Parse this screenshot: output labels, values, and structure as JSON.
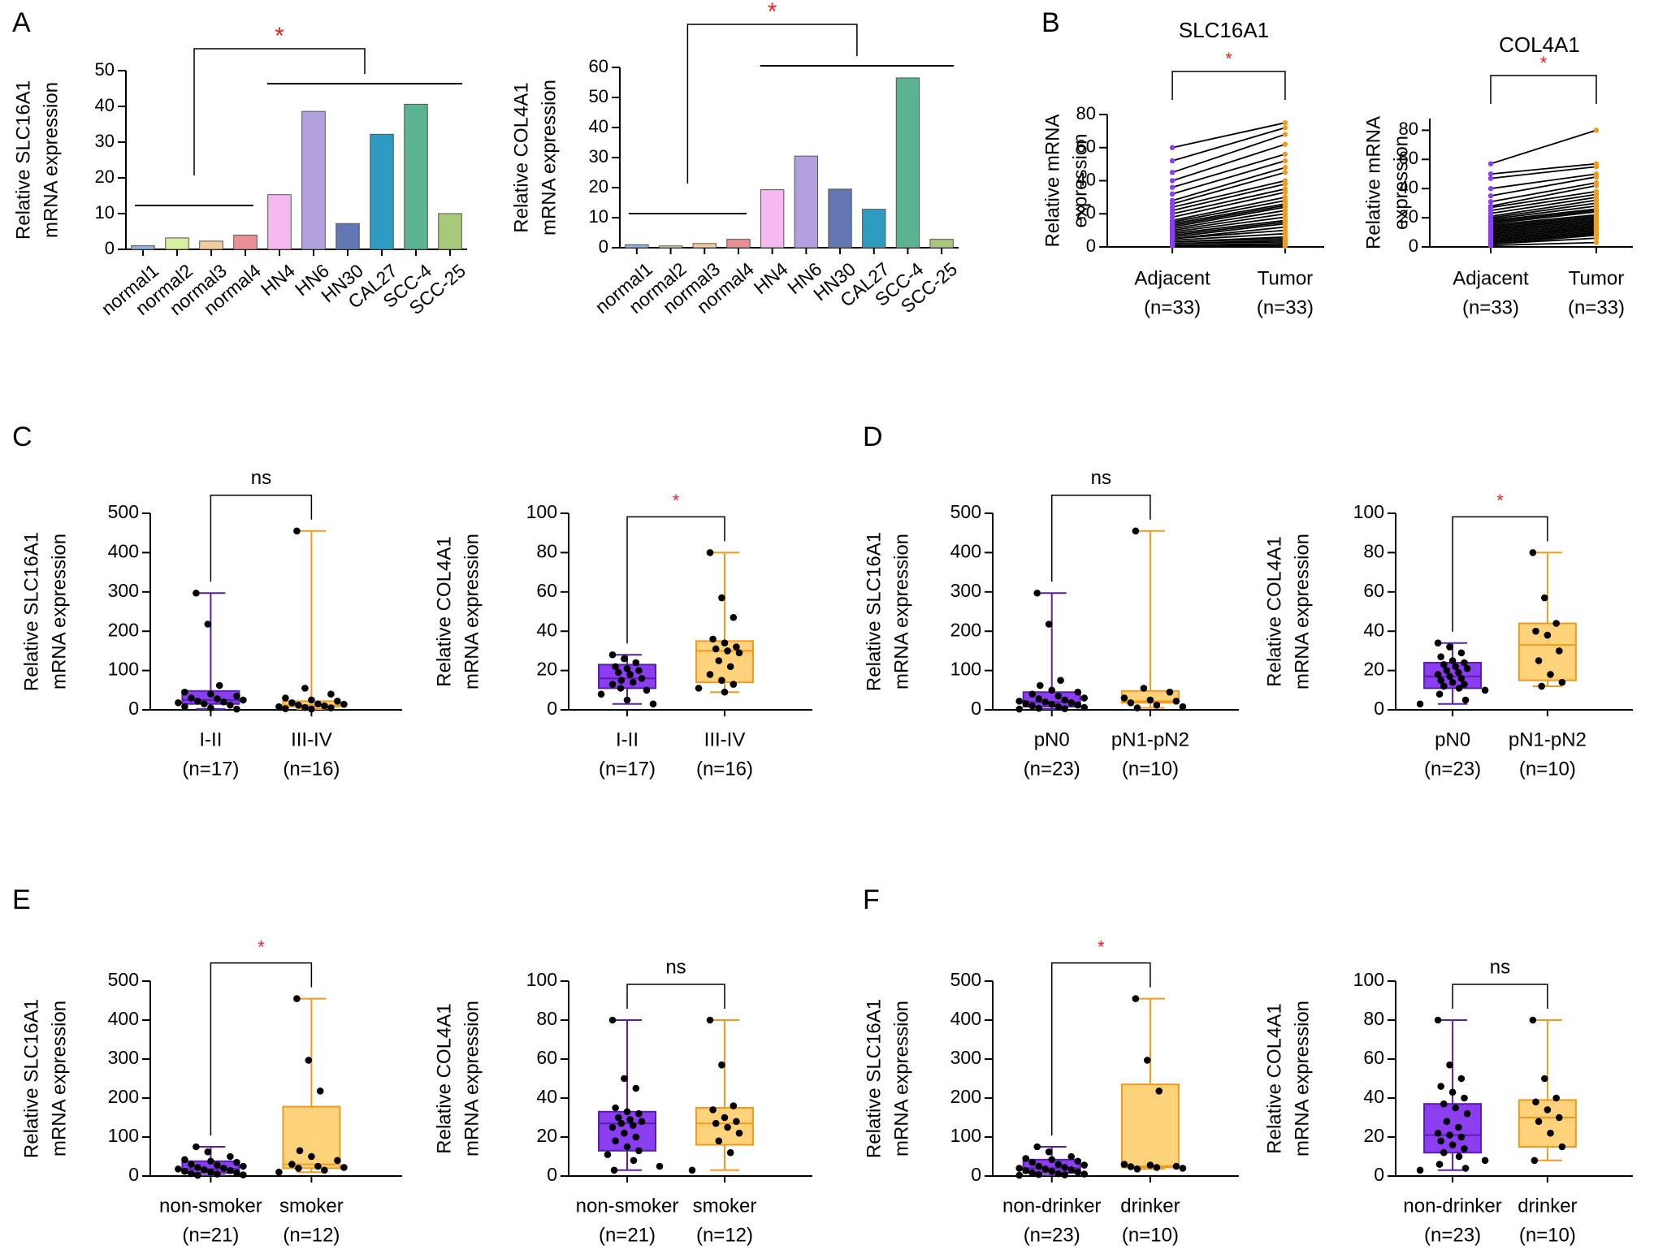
{
  "colors": {
    "purple_fill": "#8B3DF0",
    "purple_line": "#5A1FA8",
    "orange_fill": "#FDD27A",
    "orange_line": "#F29A1E",
    "sig_red": "#E8231F",
    "axis": "#000000",
    "bars": [
      "#8FB4E8",
      "#D5EEA0",
      "#F2CC9A",
      "#EA8F93",
      "#F6B8F0",
      "#B3A0DE",
      "#6277B4",
      "#2E9CC0",
      "#5BB48F",
      "#A9C97A"
    ]
  },
  "chart_data": [
    {
      "panel": "A",
      "panel_label": "A",
      "type": "bar",
      "ylabel": [
        "Relative SLC16A1",
        "mRNA expression"
      ],
      "categories": [
        "normal1",
        "normal2",
        "normal3",
        "normal4",
        "HN4",
        "HN6",
        "HN30",
        "CAL27",
        "SCC-4",
        "SCC-25"
      ],
      "values": [
        1,
        3.2,
        2.3,
        4,
        15.3,
        38.6,
        7.2,
        32.2,
        40.6,
        10
      ],
      "ylim": [
        0,
        50
      ],
      "yticks": [
        0,
        10,
        20,
        30,
        40,
        50
      ],
      "sig": "*"
    },
    {
      "panel": "A2",
      "panel_label": "",
      "type": "bar",
      "ylabel": [
        "Relative COL4A1",
        "mRNA expression"
      ],
      "categories": [
        "normal1",
        "normal2",
        "normal3",
        "normal4",
        "HN4",
        "HN6",
        "HN30",
        "CAL27",
        "SCC-4",
        "SCC-25"
      ],
      "values": [
        1,
        0.6,
        1.4,
        2.8,
        19.3,
        30.5,
        19.5,
        12.8,
        56.5,
        2.8
      ],
      "ylim": [
        0,
        60
      ],
      "yticks": [
        0,
        10,
        20,
        30,
        40,
        50,
        60
      ],
      "sig": "*"
    },
    {
      "panel": "B",
      "panel_label": "B",
      "type": "paired-line",
      "title": "SLC16A1",
      "ylabel": [
        "Relative mRNA",
        "expression"
      ],
      "groups": [
        "Adjacent",
        "Tumor"
      ],
      "ns": [
        "(n=33)",
        "(n=33)"
      ],
      "ylim": [
        0,
        80
      ],
      "yticks": [
        0,
        20,
        40,
        60,
        80
      ],
      "adjacent": [
        60,
        52,
        45,
        40,
        36,
        32,
        28,
        26,
        24,
        22,
        20,
        18,
        16,
        15,
        14,
        13,
        12,
        11,
        10,
        9,
        8,
        7,
        6,
        5,
        5,
        4,
        3,
        3,
        2,
        2,
        1,
        1,
        0.5
      ],
      "tumor": [
        75,
        72,
        68,
        62,
        56,
        52,
        48,
        45,
        40,
        38,
        35,
        33,
        30,
        28,
        26,
        25,
        24,
        22,
        20,
        18,
        16,
        15,
        14,
        12,
        10,
        8,
        6,
        5,
        4,
        3,
        2,
        1,
        0.5
      ],
      "sig": "*"
    },
    {
      "panel": "B2",
      "panel_label": "",
      "type": "paired-line",
      "title": "COL4A1",
      "ylabel": [
        "Relative mRNA",
        "expression"
      ],
      "groups": [
        "Adjacent",
        "Tumor"
      ],
      "ns": [
        "(n=33)",
        "(n=33)"
      ],
      "ylim": [
        0,
        88
      ],
      "yticks": [
        0,
        20,
        40,
        60,
        80
      ],
      "adjacent": [
        57,
        50,
        47,
        40,
        35,
        31,
        28,
        27,
        25,
        23,
        21,
        20,
        19,
        18,
        17,
        16,
        15,
        14,
        13,
        12,
        11,
        10,
        9,
        8,
        7,
        6,
        5,
        4,
        3,
        3,
        2,
        2,
        1
      ],
      "tumor": [
        80,
        57,
        55,
        50,
        48,
        44,
        42,
        38,
        36,
        34,
        32,
        30,
        28,
        26,
        25,
        24,
        22,
        21,
        20,
        19,
        18,
        17,
        16,
        15,
        14,
        13,
        12,
        11,
        10,
        9,
        8,
        6,
        3
      ],
      "sig": "*"
    },
    {
      "panel": "C",
      "panel_label": "C",
      "type": "box",
      "ylabel": [
        "Relative SLC16A1",
        "mRNA expression"
      ],
      "ylim": [
        0,
        500
      ],
      "yticks": [
        0,
        100,
        200,
        300,
        400,
        500
      ],
      "sig": "ns",
      "groups": [
        {
          "name": "I-II",
          "n": "(n=17)",
          "min": 2,
          "q1": 15,
          "median": 25,
          "q3": 48,
          "max": 297,
          "points": [
            297,
            218,
            62,
            45,
            40,
            35,
            30,
            28,
            25,
            22,
            20,
            18,
            15,
            12,
            8,
            5,
            2
          ]
        },
        {
          "name": "III-IV",
          "n": "(n=16)",
          "min": 2,
          "q1": 8,
          "median": 12,
          "q3": 22,
          "max": 455,
          "points": [
            455,
            55,
            40,
            30,
            25,
            22,
            18,
            15,
            14,
            12,
            10,
            8,
            6,
            5,
            3,
            2
          ]
        }
      ]
    },
    {
      "panel": "C2",
      "panel_label": "",
      "type": "box",
      "ylabel": [
        "Relative COL4A1",
        "mRNA expression"
      ],
      "ylim": [
        0,
        100
      ],
      "yticks": [
        0,
        20,
        40,
        60,
        80,
        100
      ],
      "sig": "*",
      "groups": [
        {
          "name": "I-II",
          "n": "(n=17)",
          "min": 3,
          "q1": 11,
          "median": 16,
          "q3": 23,
          "max": 28,
          "points": [
            28,
            26,
            24,
            22,
            21,
            20,
            19,
            18,
            16,
            15,
            14,
            13,
            11,
            10,
            8,
            5,
            3
          ]
        },
        {
          "name": "III-IV",
          "n": "(n=16)",
          "min": 9,
          "q1": 14,
          "median": 30,
          "q3": 35,
          "max": 80,
          "points": [
            80,
            57,
            47,
            36,
            34,
            32,
            31,
            30,
            29,
            25,
            22,
            18,
            15,
            13,
            11,
            9
          ]
        }
      ]
    },
    {
      "panel": "D",
      "panel_label": "D",
      "type": "box",
      "ylabel": [
        "Relative SLC16A1",
        "mRNA expression"
      ],
      "ylim": [
        0,
        500
      ],
      "yticks": [
        0,
        100,
        200,
        300,
        400,
        500
      ],
      "sig": "ns",
      "groups": [
        {
          "name": "pN0",
          "n": "(n=23)",
          "min": 2,
          "q1": 8,
          "median": 20,
          "q3": 45,
          "max": 297,
          "points": [
            297,
            218,
            75,
            62,
            50,
            45,
            40,
            35,
            30,
            28,
            25,
            22,
            20,
            18,
            16,
            14,
            12,
            10,
            8,
            6,
            4,
            3,
            2
          ]
        },
        {
          "name": "pN1-pN2",
          "n": "(n=10)",
          "min": 5,
          "q1": 18,
          "median": 22,
          "q3": 48,
          "max": 455,
          "points": [
            455,
            55,
            45,
            30,
            25,
            22,
            18,
            12,
            8,
            5
          ]
        }
      ]
    },
    {
      "panel": "D2",
      "panel_label": "",
      "type": "box",
      "ylabel": [
        "Relative COL4A1",
        "mRNA expression"
      ],
      "ylim": [
        0,
        100
      ],
      "yticks": [
        0,
        20,
        40,
        60,
        80,
        100
      ],
      "sig": "*",
      "groups": [
        {
          "name": "pN0",
          "n": "(n=23)",
          "min": 3,
          "q1": 11,
          "median": 17,
          "q3": 24,
          "max": 34,
          "points": [
            34,
            32,
            29,
            27,
            25,
            24,
            23,
            22,
            21,
            20,
            19,
            18,
            17,
            16,
            15,
            14,
            13,
            12,
            11,
            10,
            8,
            5,
            3
          ]
        },
        {
          "name": "pN1-pN2",
          "n": "(n=10)",
          "min": 12,
          "q1": 15,
          "median": 33,
          "q3": 44,
          "max": 80,
          "points": [
            80,
            57,
            44,
            40,
            38,
            30,
            25,
            18,
            14,
            12
          ]
        }
      ]
    },
    {
      "panel": "E",
      "panel_label": "E",
      "type": "box",
      "ylabel": [
        "Relative SLC16A1",
        "mRNA expression"
      ],
      "ylim": [
        0,
        500
      ],
      "yticks": [
        0,
        100,
        200,
        300,
        400,
        500
      ],
      "sig": "*",
      "groups": [
        {
          "name": "non-smoker",
          "n": "(n=21)",
          "min": 2,
          "q1": 8,
          "median": 18,
          "q3": 38,
          "max": 75,
          "points": [
            75,
            62,
            50,
            42,
            38,
            35,
            30,
            28,
            25,
            22,
            20,
            18,
            16,
            14,
            12,
            10,
            8,
            6,
            5,
            3,
            2
          ]
        },
        {
          "name": "smoker",
          "n": "(n=12)",
          "min": 10,
          "q1": 20,
          "median": 30,
          "q3": 178,
          "max": 455,
          "points": [
            455,
            297,
            218,
            65,
            50,
            40,
            30,
            25,
            22,
            20,
            15,
            10
          ]
        }
      ]
    },
    {
      "panel": "E2",
      "panel_label": "",
      "type": "box",
      "ylabel": [
        "Relative COL4A1",
        "mRNA expression"
      ],
      "ylim": [
        0,
        100
      ],
      "yticks": [
        0,
        20,
        40,
        60,
        80,
        100
      ],
      "sig": "ns",
      "groups": [
        {
          "name": "non-smoker",
          "n": "(n=21)",
          "min": 3,
          "q1": 13,
          "median": 27,
          "q3": 33,
          "max": 80,
          "points": [
            80,
            50,
            45,
            35,
            33,
            32,
            30,
            29,
            28,
            27,
            26,
            25,
            22,
            20,
            18,
            15,
            13,
            11,
            8,
            5,
            3
          ]
        },
        {
          "name": "smoker",
          "n": "(n=12)",
          "min": 3,
          "q1": 16,
          "median": 27,
          "q3": 35,
          "max": 80,
          "points": [
            80,
            57,
            36,
            34,
            30,
            28,
            27,
            25,
            22,
            18,
            12,
            3
          ]
        }
      ]
    },
    {
      "panel": "F",
      "panel_label": "F",
      "type": "box",
      "ylabel": [
        "Relative SLC16A1",
        "mRNA expression"
      ],
      "ylim": [
        0,
        500
      ],
      "yticks": [
        0,
        100,
        200,
        300,
        400,
        500
      ],
      "sig": "*",
      "groups": [
        {
          "name": "non-drinker",
          "n": "(n=23)",
          "min": 2,
          "q1": 8,
          "median": 20,
          "q3": 42,
          "max": 75,
          "points": [
            75,
            62,
            50,
            45,
            42,
            38,
            35,
            30,
            28,
            25,
            22,
            20,
            18,
            16,
            14,
            12,
            10,
            8,
            6,
            5,
            4,
            3,
            2
          ]
        },
        {
          "name": "drinker",
          "n": "(n=10)",
          "min": 18,
          "q1": 22,
          "median": 25,
          "q3": 235,
          "max": 455,
          "points": [
            455,
            297,
            218,
            30,
            28,
            25,
            24,
            22,
            20,
            18
          ]
        }
      ]
    },
    {
      "panel": "F2",
      "panel_label": "",
      "type": "box",
      "ylabel": [
        "Relative COL4A1",
        "mRNA expression"
      ],
      "ylim": [
        0,
        100
      ],
      "yticks": [
        0,
        20,
        40,
        60,
        80,
        100
      ],
      "sig": "ns",
      "groups": [
        {
          "name": "non-drinker",
          "n": "(n=23)",
          "min": 3,
          "q1": 12,
          "median": 21,
          "q3": 37,
          "max": 80,
          "points": [
            80,
            57,
            50,
            46,
            43,
            40,
            37,
            35,
            32,
            28,
            25,
            22,
            21,
            20,
            18,
            16,
            14,
            12,
            10,
            8,
            6,
            4,
            3
          ]
        },
        {
          "name": "drinker",
          "n": "(n=10)",
          "min": 8,
          "q1": 15,
          "median": 30,
          "q3": 39,
          "max": 80,
          "points": [
            80,
            50,
            40,
            38,
            34,
            30,
            28,
            22,
            15,
            8
          ]
        }
      ]
    }
  ]
}
